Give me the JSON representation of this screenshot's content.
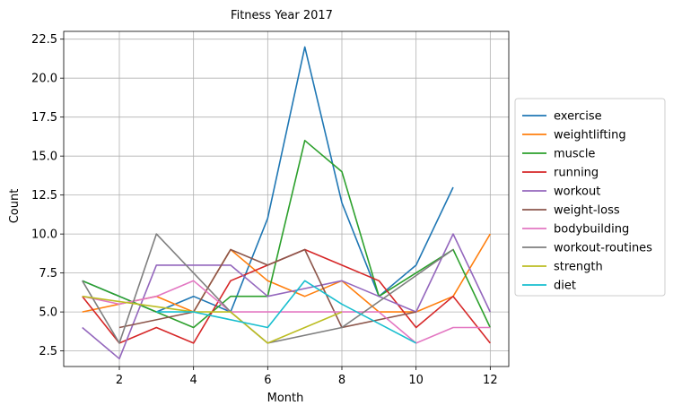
{
  "chart_data": {
    "type": "line",
    "title": "Fitness Year 2017",
    "xlabel": "Month",
    "ylabel": "Count",
    "xlim": [
      0.5,
      12.5
    ],
    "ylim": [
      1.5,
      23.0
    ],
    "xticks": [
      2,
      4,
      6,
      8,
      10,
      12
    ],
    "yticks": [
      2.5,
      5.0,
      7.5,
      10.0,
      12.5,
      15.0,
      17.5,
      20.0,
      22.5
    ],
    "grid": true,
    "legend_position": "right",
    "series": [
      {
        "name": "exercise",
        "color": "#1f77b4",
        "points": [
          [
            1,
            7
          ],
          [
            2,
            6
          ],
          [
            3,
            5
          ],
          [
            4,
            6
          ],
          [
            5,
            5
          ],
          [
            6,
            11
          ],
          [
            7,
            22
          ],
          [
            8,
            12
          ],
          [
            9,
            6
          ],
          [
            10,
            8
          ],
          [
            11,
            13
          ]
        ]
      },
      {
        "name": "weightlifting",
        "color": "#ff7f0e",
        "points": [
          [
            1,
            5
          ],
          [
            2,
            5.5
          ],
          [
            3,
            6
          ],
          [
            4,
            5
          ],
          [
            5,
            9
          ],
          [
            6,
            7
          ],
          [
            7,
            6
          ],
          [
            8,
            7
          ],
          [
            9,
            5
          ],
          [
            10,
            5
          ],
          [
            11,
            6
          ],
          [
            12,
            10
          ]
        ]
      },
      {
        "name": "muscle",
        "color": "#2ca02c",
        "points": [
          [
            1,
            7
          ],
          [
            2,
            6
          ],
          [
            3,
            5
          ],
          [
            4,
            4
          ],
          [
            5,
            6
          ],
          [
            6,
            6
          ],
          [
            7,
            16
          ],
          [
            8,
            14
          ],
          [
            9,
            6
          ],
          [
            10,
            7.5
          ],
          [
            11,
            9
          ],
          [
            12,
            4
          ]
        ]
      },
      {
        "name": "running",
        "color": "#d62728",
        "points": [
          [
            1,
            6
          ],
          [
            2,
            3
          ],
          [
            3,
            4
          ],
          [
            4,
            3
          ],
          [
            5,
            7
          ],
          [
            6,
            8
          ],
          [
            7,
            9
          ],
          [
            8,
            8
          ],
          [
            9,
            7
          ],
          [
            10,
            4
          ],
          [
            11,
            6
          ],
          [
            12,
            3
          ]
        ]
      },
      {
        "name": "workout",
        "color": "#9467bd",
        "points": [
          [
            1,
            4
          ],
          [
            2,
            2
          ],
          [
            3,
            8
          ],
          [
            4,
            8
          ],
          [
            5,
            8
          ],
          [
            6,
            6
          ],
          [
            7,
            6.5
          ],
          [
            8,
            7
          ],
          [
            9,
            6
          ],
          [
            10,
            5
          ],
          [
            11,
            10
          ],
          [
            12,
            5
          ]
        ]
      },
      {
        "name": "weight-loss",
        "color": "#8c564b",
        "points": [
          [
            2,
            4
          ],
          [
            4,
            5
          ],
          [
            5,
            9
          ],
          [
            6,
            8
          ],
          [
            7,
            9
          ],
          [
            8,
            4
          ],
          [
            10,
            5
          ]
        ]
      },
      {
        "name": "bodybuilding",
        "color": "#e377c2",
        "points": [
          [
            1,
            6
          ],
          [
            2,
            5.5
          ],
          [
            3,
            6
          ],
          [
            4,
            7
          ],
          [
            5,
            5
          ],
          [
            6,
            5
          ],
          [
            7,
            5
          ],
          [
            8,
            5
          ],
          [
            9,
            5
          ],
          [
            10,
            3
          ],
          [
            11,
            4
          ],
          [
            12,
            4
          ]
        ]
      },
      {
        "name": "workout-routines",
        "color": "#7f7f7f",
        "points": [
          [
            1,
            7
          ],
          [
            2,
            3
          ],
          [
            3,
            10
          ],
          [
            5,
            5
          ],
          [
            6,
            3
          ],
          [
            8,
            4
          ],
          [
            11,
            9
          ]
        ]
      },
      {
        "name": "strength",
        "color": "#bcbd22",
        "points": [
          [
            1,
            6
          ],
          [
            4,
            5
          ],
          [
            5,
            5
          ],
          [
            6,
            3
          ],
          [
            8,
            5
          ]
        ]
      },
      {
        "name": "diet",
        "color": "#17becf",
        "points": [
          [
            3,
            5
          ],
          [
            4,
            5
          ],
          [
            6,
            4
          ],
          [
            7,
            7
          ],
          [
            8,
            5.5
          ],
          [
            10,
            3
          ]
        ]
      }
    ]
  }
}
